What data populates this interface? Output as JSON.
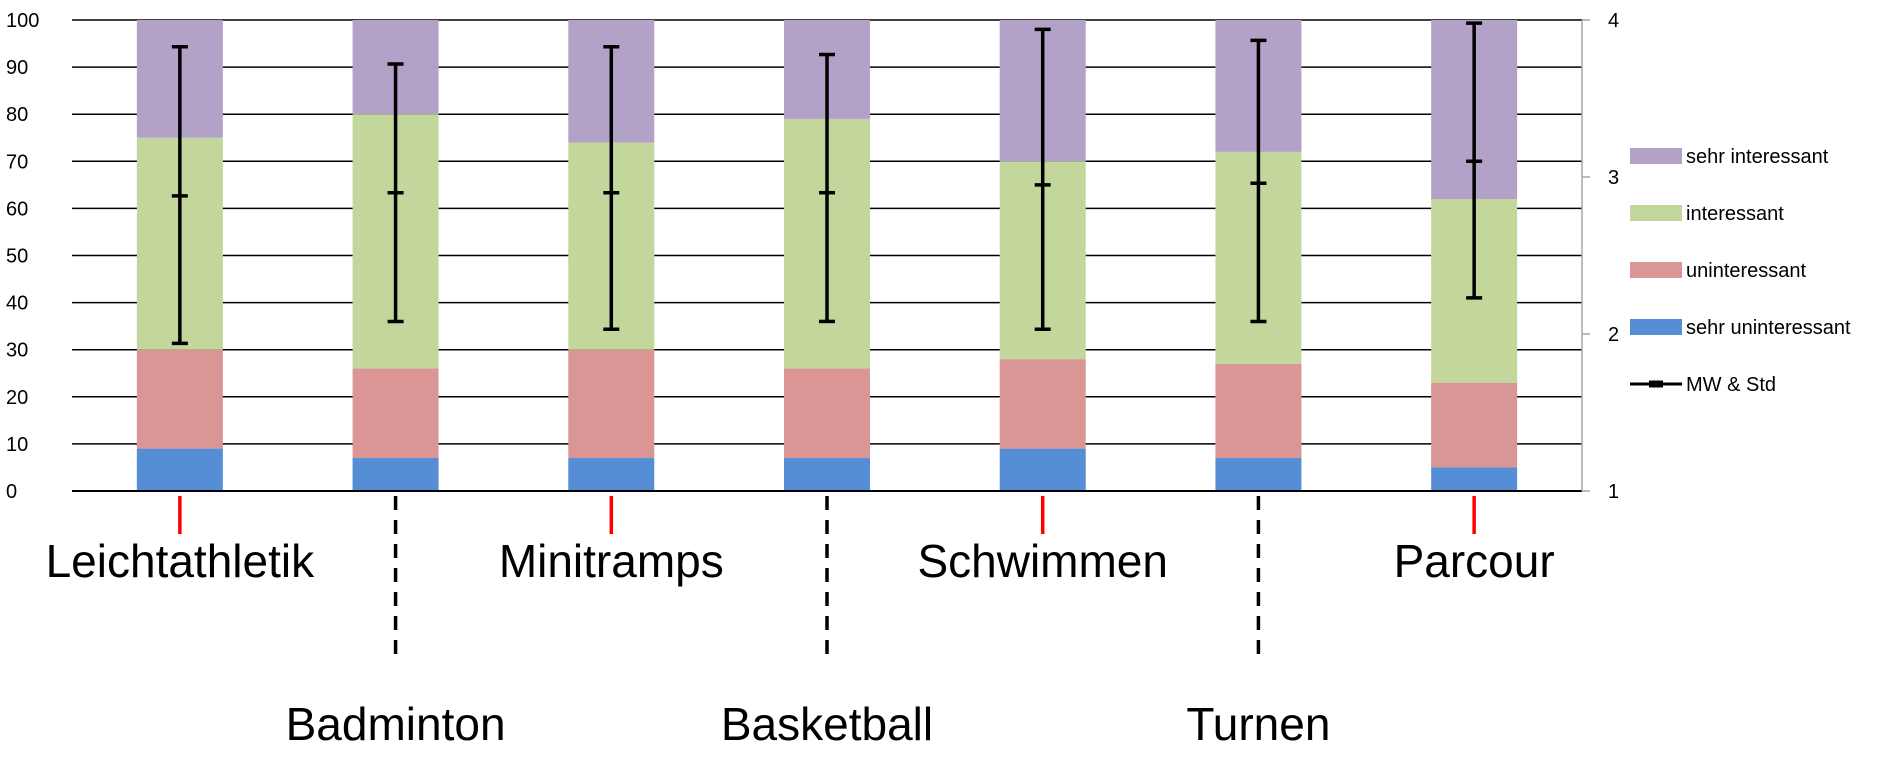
{
  "chart_data": {
    "type": "bar",
    "stacked": true,
    "percent": true,
    "categories": [
      "Leichtathletik",
      "Badminton",
      "Minitramps",
      "Basketball",
      "Schwimmen",
      "Turnen",
      "Parcour"
    ],
    "series": [
      {
        "name": "sehr uninteressant",
        "color": "#558ED5",
        "values": [
          9,
          7,
          7,
          7,
          9,
          7,
          5
        ]
      },
      {
        "name": "uninteressant",
        "color": "#D99694",
        "values": [
          21,
          19,
          23,
          19,
          19,
          20,
          18
        ]
      },
      {
        "name": "interessant",
        "color": "#C3D69B",
        "values": [
          45,
          54,
          44,
          53,
          42,
          45,
          39
        ]
      },
      {
        "name": "sehr interessant",
        "color": "#B3A2C7",
        "values": [
          25,
          20,
          26,
          21,
          30,
          28,
          38
        ]
      }
    ],
    "error_series": {
      "name": "MW & Std",
      "axis": "secondary",
      "color": "#000000",
      "mean": [
        2.88,
        2.9,
        2.9,
        2.9,
        2.95,
        2.96,
        3.1
      ],
      "upper": [
        3.83,
        3.72,
        3.83,
        3.78,
        3.94,
        3.87,
        3.98
      ],
      "lower": [
        1.94,
        2.08,
        2.03,
        2.08,
        2.03,
        2.08,
        2.23
      ]
    },
    "y_ticks": [
      "0",
      "10",
      "20",
      "30",
      "40",
      "50",
      "60",
      "70",
      "80",
      "90",
      "100"
    ],
    "y2_ticks": [
      "1",
      "2",
      "3",
      "4"
    ],
    "ylim": [
      0,
      100
    ],
    "y2lim": [
      1,
      4
    ],
    "grid": true,
    "legend_position": "right",
    "legend": [
      {
        "label": "sehr interessant",
        "color": "#B3A2C7",
        "kind": "box"
      },
      {
        "label": "interessant",
        "color": "#C3D69B",
        "kind": "box"
      },
      {
        "label": "uninteressant",
        "color": "#D99694",
        "kind": "box"
      },
      {
        "label": "sehr uninteressant",
        "color": "#558ED5",
        "kind": "box"
      },
      {
        "label": "MW & Std",
        "color": "#000000",
        "kind": "errorbar"
      }
    ],
    "category_label_rows": [
      "top",
      "bottom",
      "top",
      "bottom",
      "top",
      "bottom",
      "top"
    ],
    "category_marker_colors": [
      "#FF0000",
      "#000000",
      "#FF0000",
      "#000000",
      "#FF0000",
      "#000000",
      "#FF0000"
    ]
  }
}
